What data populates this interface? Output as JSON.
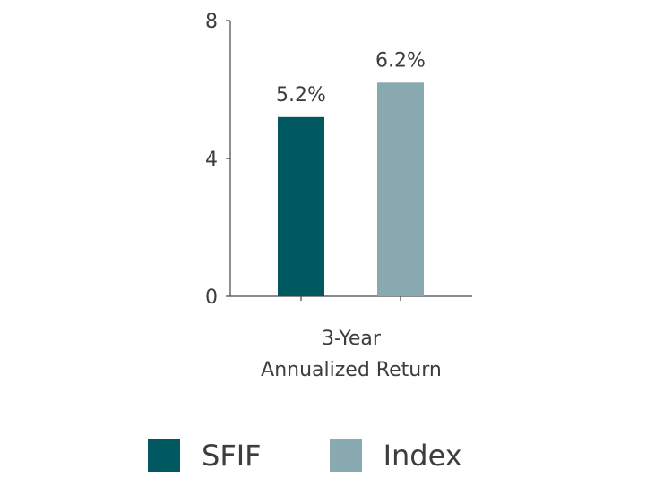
{
  "chart_data": {
    "type": "bar",
    "categories": [
      "3-Year Annualized Return"
    ],
    "category_label_lines": [
      "3-Year",
      "Annualized Return"
    ],
    "series": [
      {
        "name": "SFIF",
        "values": [
          5.2
        ],
        "color": "#005961",
        "data_label": "5.2%"
      },
      {
        "name": "Index",
        "values": [
          6.2
        ],
        "color": "#88a9b0",
        "data_label": "6.2%"
      }
    ],
    "ylim": [
      0,
      8
    ],
    "yticks": [
      0,
      4,
      8
    ],
    "ytick_labels": [
      "0",
      "4",
      "8"
    ],
    "grid": false,
    "legend": "bottom"
  }
}
